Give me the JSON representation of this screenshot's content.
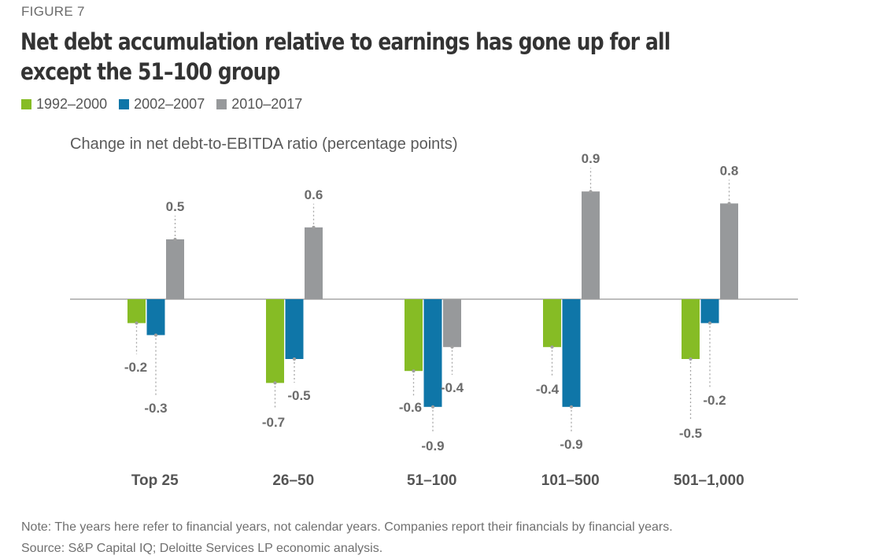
{
  "figure_label": "FIGURE 7",
  "chart_data": {
    "type": "bar",
    "title": "Net debt accumulation relative to earnings has gone up for all except the 51–100 group",
    "ylabel": "Change in net debt-to-EBITDA ratio (percentage points)",
    "xlabel": "",
    "categories": [
      "Top 25",
      "26–50",
      "51–100",
      "101–500",
      "501–1,000"
    ],
    "series": [
      {
        "name": "1992–2000",
        "color": "#86bc25",
        "values": [
          -0.2,
          -0.7,
          -0.6,
          -0.4,
          -0.5
        ]
      },
      {
        "name": "2002–2007",
        "color": "#0f76a8",
        "values": [
          -0.3,
          -0.5,
          -0.9,
          -0.9,
          -0.2
        ]
      },
      {
        "name": "2010–2017",
        "color": "#97999b",
        "values": [
          0.5,
          0.6,
          -0.4,
          0.9,
          0.8
        ]
      }
    ],
    "ylim": [
      -1.0,
      1.0
    ],
    "grid": false,
    "legend_position": "top-left",
    "data_labels": true
  },
  "note": "Note: The years here refer to financial years, not calendar years. Companies report their financials by financial years.",
  "source": "Source: S&P Capital IQ; Deloitte Services LP economic analysis."
}
